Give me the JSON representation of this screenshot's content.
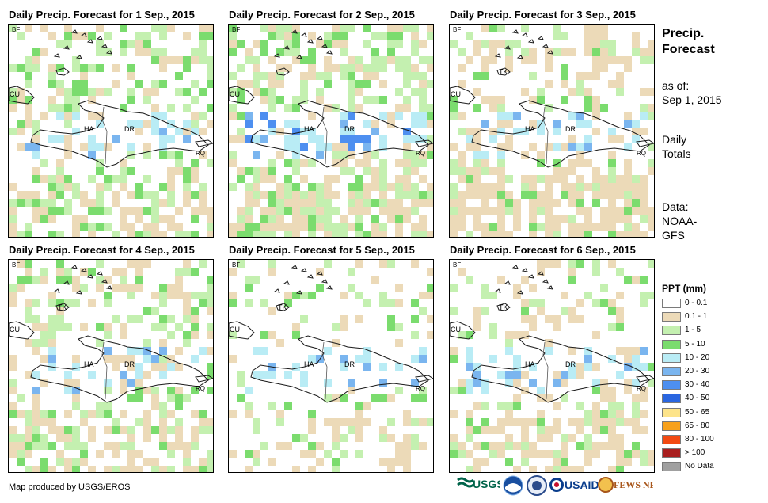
{
  "panels": [
    {
      "title": "Daily Precip. Forecast for 1 Sep., 2015"
    },
    {
      "title": "Daily Precip. Forecast for 2 Sep., 2015"
    },
    {
      "title": "Daily Precip. Forecast for 3 Sep., 2015"
    },
    {
      "title": "Daily Precip. Forecast for 4 Sep., 2015"
    },
    {
      "title": "Daily Precip. Forecast for 5 Sep., 2015"
    },
    {
      "title": "Daily Precip. Forecast for 6 Sep., 2015"
    }
  ],
  "map_labels": {
    "bf": "BF",
    "cu": "CU",
    "ha": "HA",
    "dr": "DR",
    "rq": "RQ",
    "tk": "TK"
  },
  "sidebar": {
    "title_line1": "Precip.",
    "title_line2": "Forecast",
    "asof_line1": "as of:",
    "asof_line2": "Sep 1, 2015",
    "totals_line1": "Daily",
    "totals_line2": "Totals",
    "data_line1": "Data:",
    "data_line2": "NOAA-",
    "data_line3": "GFS"
  },
  "legend": {
    "title": "PPT (mm)",
    "items": [
      {
        "label": "0 - 0.1",
        "color": "#ffffff"
      },
      {
        "label": "0.1 - 1",
        "color": "#ecdab8"
      },
      {
        "label": "1 - 5",
        "color": "#c4f0b0"
      },
      {
        "label": "5 - 10",
        "color": "#7bdc6e"
      },
      {
        "label": "10 - 20",
        "color": "#b9ecf5"
      },
      {
        "label": "20 - 30",
        "color": "#7ab5ef"
      },
      {
        "label": "30 - 40",
        "color": "#4d8ff0"
      },
      {
        "label": "40 - 50",
        "color": "#2a66e0"
      },
      {
        "label": "50 - 65",
        "color": "#fde48a"
      },
      {
        "label": "65 - 80",
        "color": "#f7a11b"
      },
      {
        "label": "80 - 100",
        "color": "#f24a12"
      },
      {
        "label": "> 100",
        "color": "#a91f1f"
      },
      {
        "label": "No Data",
        "color": "#a0a0a0"
      }
    ]
  },
  "footer": {
    "credit": "Map produced by USGS/EROS"
  },
  "logos": {
    "usgs": "USGS",
    "usaid": "USAID",
    "fewsnet": "FEWS NET"
  }
}
